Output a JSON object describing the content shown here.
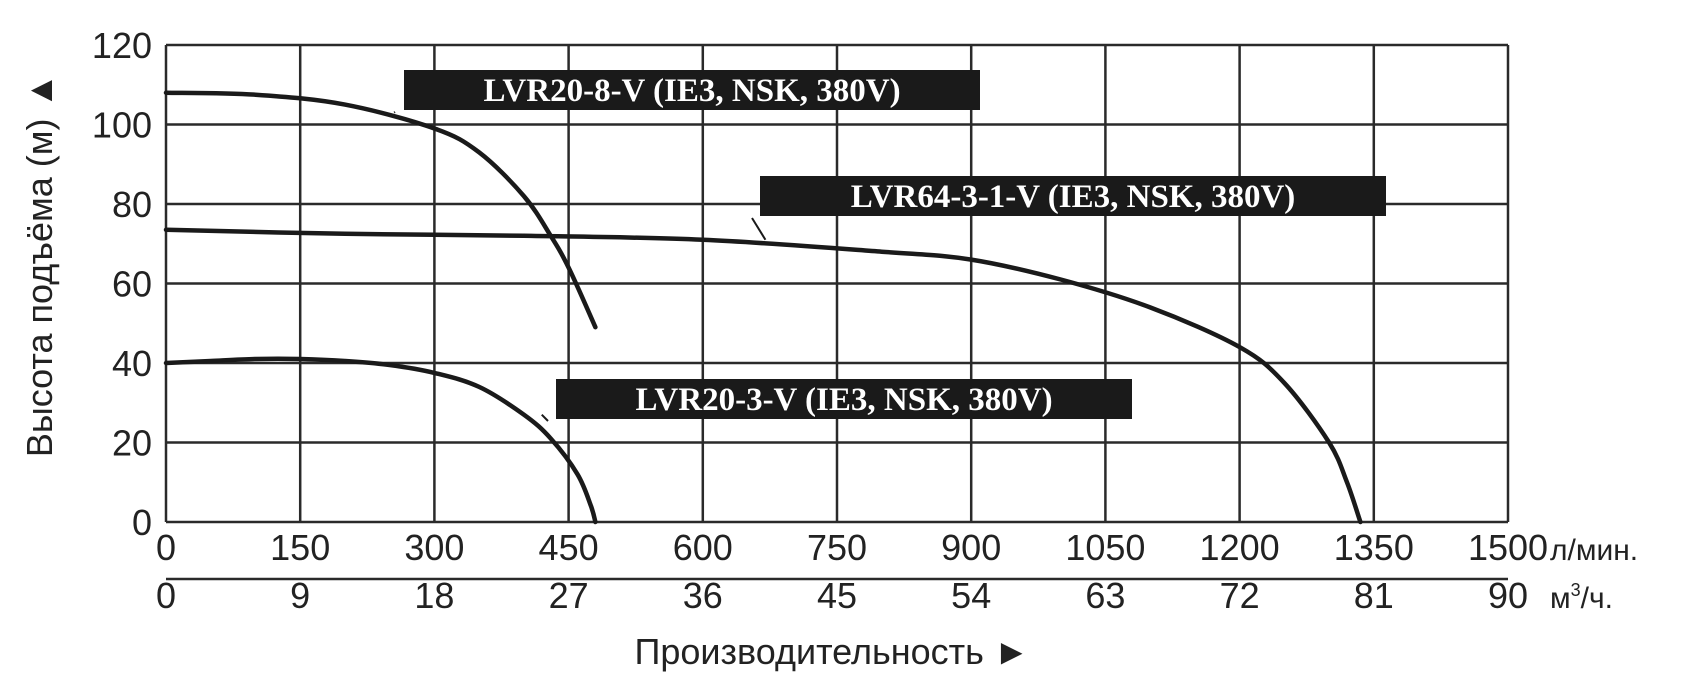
{
  "chart_data": {
    "type": "line",
    "ylabel": "Высота подъёма (м) ▲",
    "xlabel": "Производительность ►",
    "x_unit_primary": "л/мин.",
    "x_unit_secondary_base": "м",
    "x_unit_secondary_sup": "3",
    "x_unit_secondary_tail": "/ч.",
    "xlim": [
      0,
      1500
    ],
    "ylim": [
      0,
      120
    ],
    "x_ticks": [
      0,
      150,
      300,
      450,
      600,
      750,
      900,
      1050,
      1200,
      1350,
      1500
    ],
    "x_ticks_secondary": [
      0,
      9,
      18,
      27,
      36,
      45,
      54,
      63,
      72,
      81,
      90
    ],
    "y_ticks": [
      0,
      20,
      40,
      60,
      80,
      100,
      120
    ],
    "grid": true,
    "series": [
      {
        "name": "LVR20-8-V (IE3, NSK, 380V)",
        "x": [
          0,
          100,
          200,
          300,
          350,
          400,
          430,
          450,
          480
        ],
        "y": [
          108,
          107.5,
          105,
          99,
          93,
          82,
          72,
          64,
          49
        ],
        "label_anchor": [
          255,
          103
        ]
      },
      {
        "name": "LVR64-3-1-V (IE3, NSK, 380V)",
        "x": [
          0,
          200,
          400,
          600,
          800,
          900,
          1000,
          1100,
          1200,
          1250,
          1300,
          1320,
          1335
        ],
        "y": [
          73.5,
          72.5,
          72,
          71,
          68,
          66,
          61,
          54,
          44,
          35,
          20,
          10,
          0
        ],
        "label_anchor": [
          670,
          71
        ]
      },
      {
        "name": "LVR20-3-V (IE3, NSK, 380V)",
        "x": [
          0,
          50,
          100,
          150,
          200,
          250,
          300,
          350,
          400,
          430,
          460,
          475,
          480
        ],
        "y": [
          40,
          40.5,
          41,
          41,
          40.5,
          39.5,
          37.5,
          34,
          27,
          21,
          12,
          4,
          0
        ],
        "label_anchor": [
          420,
          27
        ]
      }
    ]
  }
}
